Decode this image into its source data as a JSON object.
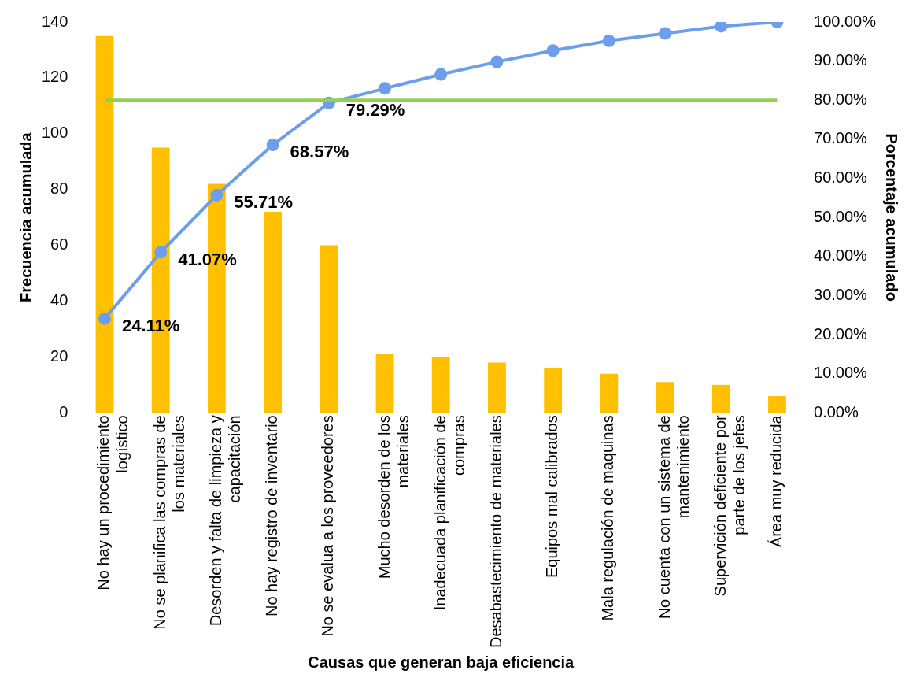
{
  "chart_data": {
    "type": "bar",
    "xlabel": "Causas que generan baja eficiencia",
    "ylabel": "Frecuencia acumulada",
    "y2label": "Porcentaje acumulado",
    "categories": [
      "No hay un procedimiento logístico",
      "No se planifica las compras de los materiales",
      "Desorden y falta de limpieza y capacitación",
      "No hay registro de inventario",
      "No se evalua a los proveedores",
      "Mucho desorden de los materiales",
      "Inadecuada planificación de compras",
      "Desabastecimiento de materiales",
      "Equipos mal calibrados",
      "Mala regulación de maquinas",
      "No cuenta con un sistema de mantenimiento",
      "Supervición deficiente por parte de los jefes",
      "Área muy reducida"
    ],
    "series": [
      {
        "color": "#ffc000",
        "values": [
          135,
          95,
          82,
          72,
          60,
          21,
          20,
          18,
          16,
          14,
          11,
          10,
          6
        ]
      },
      {
        "type": "line",
        "axis": "y2",
        "color": "#6d9eeb",
        "marker": "circle",
        "values": [
          24.11,
          41.07,
          55.71,
          68.57,
          79.29,
          83,
          86.6,
          89.8,
          92.7,
          95.2,
          97.1,
          98.9,
          100
        ],
        "value_labels": [
          "24.11%",
          "41.07%",
          "55.71%",
          "68.57%",
          "79.29%",
          null,
          null,
          null,
          null,
          null,
          null,
          null,
          null
        ]
      }
    ],
    "ylim": [
      0,
      140
    ],
    "yticks": [
      0,
      20,
      40,
      60,
      80,
      100,
      120,
      140
    ],
    "y2lim": [
      0,
      100
    ],
    "y2ticks": [
      {
        "value": 0,
        "label": "0.00%"
      },
      {
        "value": 10,
        "label": "10.00%"
      },
      {
        "value": 20,
        "label": "20.00%"
      },
      {
        "value": 30,
        "label": "30.00%"
      },
      {
        "value": 40,
        "label": "40.00%"
      },
      {
        "value": 50,
        "label": "50.00%"
      },
      {
        "value": 60,
        "label": "60.00%"
      },
      {
        "value": 70,
        "label": "70.00%"
      },
      {
        "value": 80,
        "label": "80.00%"
      },
      {
        "value": 90,
        "label": "90.00%"
      },
      {
        "value": 100,
        "label": "100.00%"
      }
    ],
    "ref_lines": [
      {
        "axis": "y2",
        "value": 80,
        "color": "#92d050"
      }
    ],
    "grid": false,
    "legend": false
  }
}
